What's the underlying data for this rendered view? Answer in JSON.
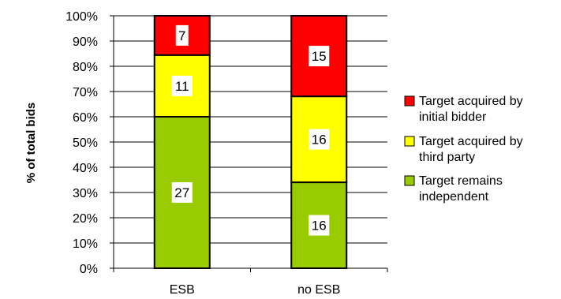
{
  "chart_data": {
    "type": "bar",
    "stacked": true,
    "normalized_percent": true,
    "categories": [
      "ESB",
      "no ESB"
    ],
    "series": [
      {
        "name": "Target remains independent",
        "values": [
          27,
          16
        ],
        "color": "#99CC00"
      },
      {
        "name": "Target acquired by third party",
        "values": [
          11,
          16
        ],
        "color": "#FFFF00"
      },
      {
        "name": "Target acquired by initial bidder",
        "values": [
          7,
          15
        ],
        "color": "#FF0000"
      }
    ],
    "ylabel": "% of total bids",
    "ylim": [
      0,
      100
    ],
    "yticks": [
      "0%",
      "10%",
      "20%",
      "30%",
      "40%",
      "50%",
      "60%",
      "70%",
      "80%",
      "90%",
      "100%"
    ],
    "legend_position": "right",
    "legend_order": [
      2,
      1,
      0
    ],
    "legend_lines": [
      [
        "Target acquired by",
        "initial bidder"
      ],
      [
        "Target acquired by",
        "third party"
      ],
      [
        "Target remains",
        "independent"
      ]
    ],
    "grid": true
  }
}
